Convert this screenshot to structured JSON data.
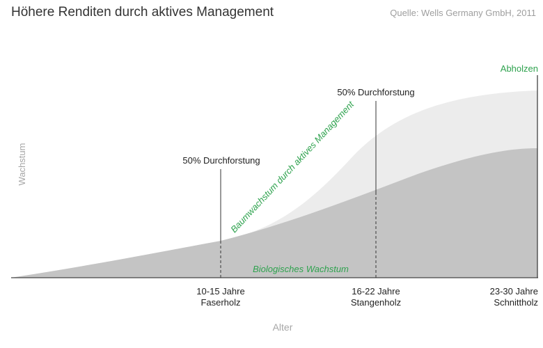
{
  "title": "Höhere Renditen durch aktives Management",
  "source": "Quelle: Wells Germany GmbH, 2011",
  "colors": {
    "managed_area": "#ececec",
    "biological_area": "#c4c4c4",
    "accent_green": "#2ea24e",
    "axis_label": "#a6a6a6",
    "text": "#222222"
  },
  "chart_data": {
    "type": "area",
    "xlabel": "Alter",
    "ylabel": "Wachstum",
    "grid": false,
    "series": [
      {
        "name": "Biologisches Wachstum",
        "label_text": "Biologisches Wachstum"
      },
      {
        "name": "Baumwachstum durch aktives Management",
        "label_text": "Baumwachstum durch aktives Management"
      }
    ],
    "x_categories": [
      {
        "line1": "10-15 Jahre",
        "line2": "Faserholz"
      },
      {
        "line1": "16-22 Jahre",
        "line2": "Stangenholz"
      },
      {
        "line1": "23-30 Jahre",
        "line2": "Schnittholz"
      }
    ],
    "annotations": [
      {
        "text": "50% Durchforstung",
        "at_category": 0
      },
      {
        "text": "50% Durchforstung",
        "at_category": 1
      },
      {
        "text": "Abholzen",
        "at_category": 2
      }
    ]
  }
}
